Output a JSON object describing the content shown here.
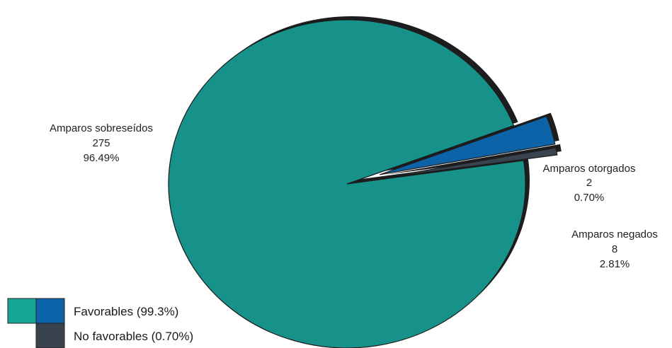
{
  "chart_data": {
    "type": "pie",
    "slices": [
      {
        "label": "Amparos sobreseídos",
        "count": "275",
        "percent": "96.49%",
        "value": 275,
        "color": "#17928a",
        "explode": false
      },
      {
        "label": "Amparos negados",
        "count": "8",
        "percent": "2.81%",
        "value": 8,
        "color": "#0c63a8",
        "explode": true
      },
      {
        "label": "Amparos otorgados",
        "count": "2",
        "percent": "0.70%",
        "value": 2,
        "color": "#39434f",
        "explode": true
      }
    ],
    "legend": [
      {
        "label": "Favorables (99.3%)",
        "colors": [
          "#17a597",
          "#0c63a8"
        ]
      },
      {
        "label": "No favorables (0.70%)",
        "colors": [
          "#39434f"
        ]
      }
    ],
    "legend_position": "bottom-left",
    "style": "3d-shadow"
  }
}
